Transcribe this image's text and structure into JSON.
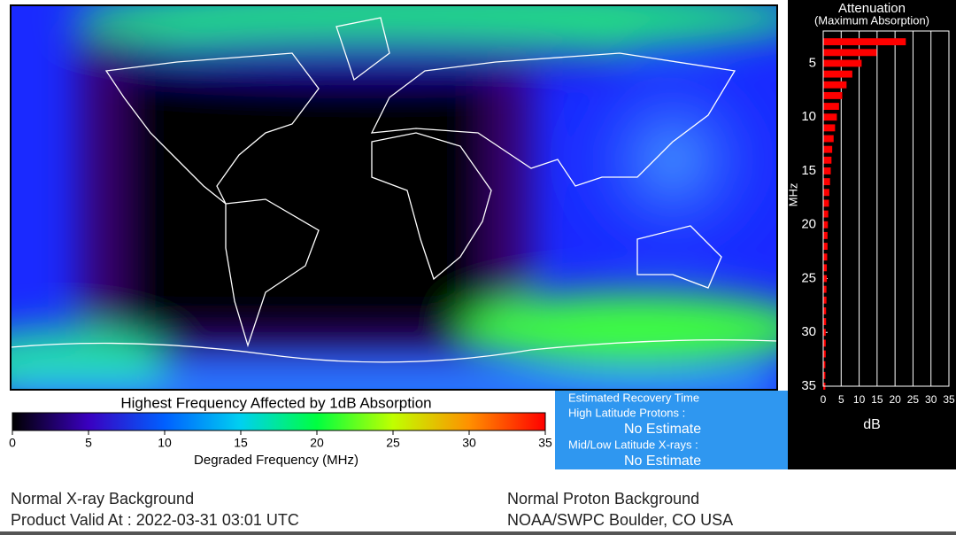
{
  "colorbar": {
    "title": "Highest Frequency Affected by 1dB Absorption",
    "label": "Degraded Frequency (MHz)",
    "xlim": [
      0,
      35
    ],
    "xticks": [
      0,
      5,
      10,
      15,
      20,
      25,
      30,
      35
    ],
    "colors": [
      "#000000",
      "#3a00c0",
      "#0060ff",
      "#00d0f0",
      "#00ff40",
      "#c0ff00",
      "#ff9000",
      "#ff0000"
    ]
  },
  "recovery": {
    "title": "Estimated Recovery Time",
    "rows": [
      {
        "label": "High Latitude Protons :",
        "value": "No Estimate"
      },
      {
        "label": "Mid/Low Latitude X-rays :",
        "value": "No Estimate"
      }
    ]
  },
  "chart_data": {
    "type": "bar",
    "orientation": "horizontal",
    "title": "Attenuation",
    "subtitle": "(Maximum Absorption)",
    "x_label": "dB",
    "y_label": "MHz",
    "x": [
      3,
      4,
      5,
      6,
      7,
      8,
      9,
      10,
      11,
      12,
      13,
      14,
      15,
      16,
      17,
      18,
      19,
      20,
      21,
      22,
      23,
      24,
      25,
      26,
      27,
      28,
      29,
      30,
      31,
      32,
      33,
      34,
      35
    ],
    "values": [
      23.0,
      14.9,
      10.7,
      8.1,
      6.5,
      5.3,
      4.4,
      3.8,
      3.3,
      2.9,
      2.5,
      2.3,
      2.1,
      1.9,
      1.7,
      1.6,
      1.4,
      1.3,
      1.2,
      1.2,
      1.1,
      1.0,
      1.0,
      0.9,
      0.9,
      0.8,
      0.8,
      0.7,
      0.7,
      0.7,
      0.6,
      0.6,
      0.6
    ],
    "color": "#ff0000",
    "xlim": [
      0,
      35
    ],
    "xticks": [
      0,
      5,
      10,
      15,
      20,
      25,
      30,
      35
    ],
    "ylim": [
      2,
      35
    ],
    "yticks": [
      5,
      10,
      15,
      20,
      25,
      30,
      35
    ],
    "grid": true
  },
  "footer": {
    "left": [
      "Normal X-ray Background",
      "Product Valid At : 2022-03-31 03:01 UTC"
    ],
    "right": [
      "Normal Proton Background",
      "NOAA/SWPC Boulder, CO USA"
    ]
  }
}
